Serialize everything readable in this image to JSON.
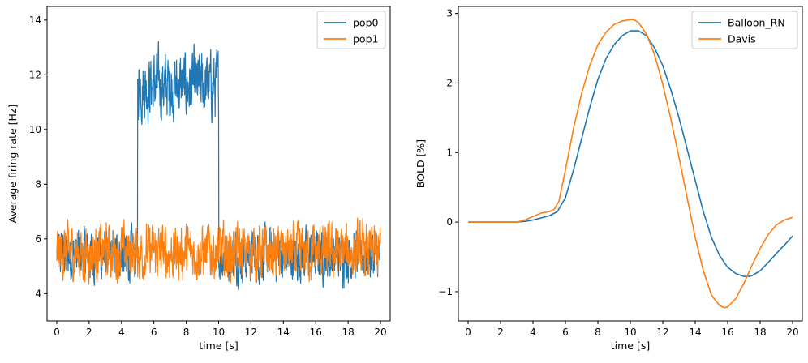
{
  "chart_data": [
    {
      "type": "line",
      "xlabel": "time [s]",
      "ylabel": "Average firing rate [Hz]",
      "xlim": [
        -0.6,
        20.6
      ],
      "ylim": [
        3.0,
        14.5
      ],
      "xticks": [
        0,
        2,
        4,
        6,
        8,
        10,
        12,
        14,
        16,
        18,
        20
      ],
      "xtick_labels": [
        "0",
        "2",
        "4",
        "6",
        "8",
        "10",
        "12",
        "14",
        "16",
        "18",
        "20"
      ],
      "yticks": [
        4,
        6,
        8,
        10,
        12,
        14
      ],
      "ytick_labels": [
        "4",
        "6",
        "8",
        "10",
        "12",
        "14"
      ],
      "legend": "top-right",
      "series": [
        {
          "name": "pop0",
          "color": "#1f77b4",
          "description_points": {
            "baseline_level": 5.4,
            "baseline_range": [
              3.6,
              6.9
            ],
            "stim_interval": [
              5.0,
              10.0
            ],
            "stim_level": 11.6,
            "stim_range": [
              9.2,
              14.0
            ]
          }
        },
        {
          "name": "pop1",
          "color": "#ff7f0e",
          "description_points": {
            "baseline_level": 5.5,
            "baseline_range": [
              3.5,
              7.0
            ]
          }
        }
      ]
    },
    {
      "type": "line",
      "xlabel": "time [s]",
      "ylabel": "BOLD [%]",
      "xlim": [
        -0.6,
        20.6
      ],
      "ylim": [
        -1.42,
        3.1
      ],
      "xticks": [
        0,
        2,
        4,
        6,
        8,
        10,
        12,
        14,
        16,
        18,
        20
      ],
      "xtick_labels": [
        "0",
        "2",
        "4",
        "6",
        "8",
        "10",
        "12",
        "14",
        "16",
        "18",
        "20"
      ],
      "yticks": [
        -1,
        0,
        1,
        2,
        3
      ],
      "ytick_labels": [
        "−1",
        "0",
        "1",
        "2",
        "3"
      ],
      "legend": "top-right",
      "series": [
        {
          "name": "Balloon_RN",
          "color": "#1f77b4",
          "x": [
            0,
            1,
            2,
            3,
            3.5,
            4,
            4.5,
            5,
            5.5,
            6,
            6.5,
            7,
            7.5,
            8,
            8.5,
            9,
            9.5,
            10,
            10.5,
            11,
            11.5,
            12,
            12.5,
            13,
            13.5,
            14,
            14.5,
            15,
            15.5,
            16,
            16.5,
            17,
            17.3,
            17.5,
            18,
            18.5,
            19,
            19.5,
            20
          ],
          "y": [
            0,
            0,
            0,
            0,
            0.01,
            0.03,
            0.06,
            0.09,
            0.15,
            0.35,
            0.75,
            1.2,
            1.65,
            2.05,
            2.35,
            2.55,
            2.68,
            2.75,
            2.75,
            2.68,
            2.5,
            2.25,
            1.9,
            1.5,
            1.05,
            0.6,
            0.15,
            -0.22,
            -0.48,
            -0.65,
            -0.74,
            -0.78,
            -0.78,
            -0.77,
            -0.7,
            -0.58,
            -0.45,
            -0.33,
            -0.2
          ]
        },
        {
          "name": "Davis",
          "color": "#ff7f0e",
          "x": [
            0,
            1,
            2,
            3,
            3.5,
            4,
            4.5,
            5,
            5.3,
            5.6,
            6,
            6.5,
            7,
            7.5,
            8,
            8.5,
            9,
            9.5,
            10,
            10.2,
            10.5,
            11,
            11.5,
            12,
            12.5,
            13,
            13.5,
            14,
            14.5,
            15,
            15.5,
            15.8,
            16,
            16.5,
            17,
            17.5,
            18,
            18.5,
            19,
            19.5,
            20
          ],
          "y": [
            0,
            0,
            0,
            0,
            0.03,
            0.08,
            0.13,
            0.15,
            0.18,
            0.3,
            0.75,
            1.35,
            1.85,
            2.25,
            2.55,
            2.73,
            2.84,
            2.89,
            2.91,
            2.91,
            2.87,
            2.7,
            2.4,
            1.98,
            1.48,
            0.93,
            0.35,
            -0.22,
            -0.7,
            -1.05,
            -1.2,
            -1.23,
            -1.22,
            -1.1,
            -0.88,
            -0.62,
            -0.38,
            -0.18,
            -0.04,
            0.03,
            0.07
          ]
        }
      ]
    }
  ]
}
